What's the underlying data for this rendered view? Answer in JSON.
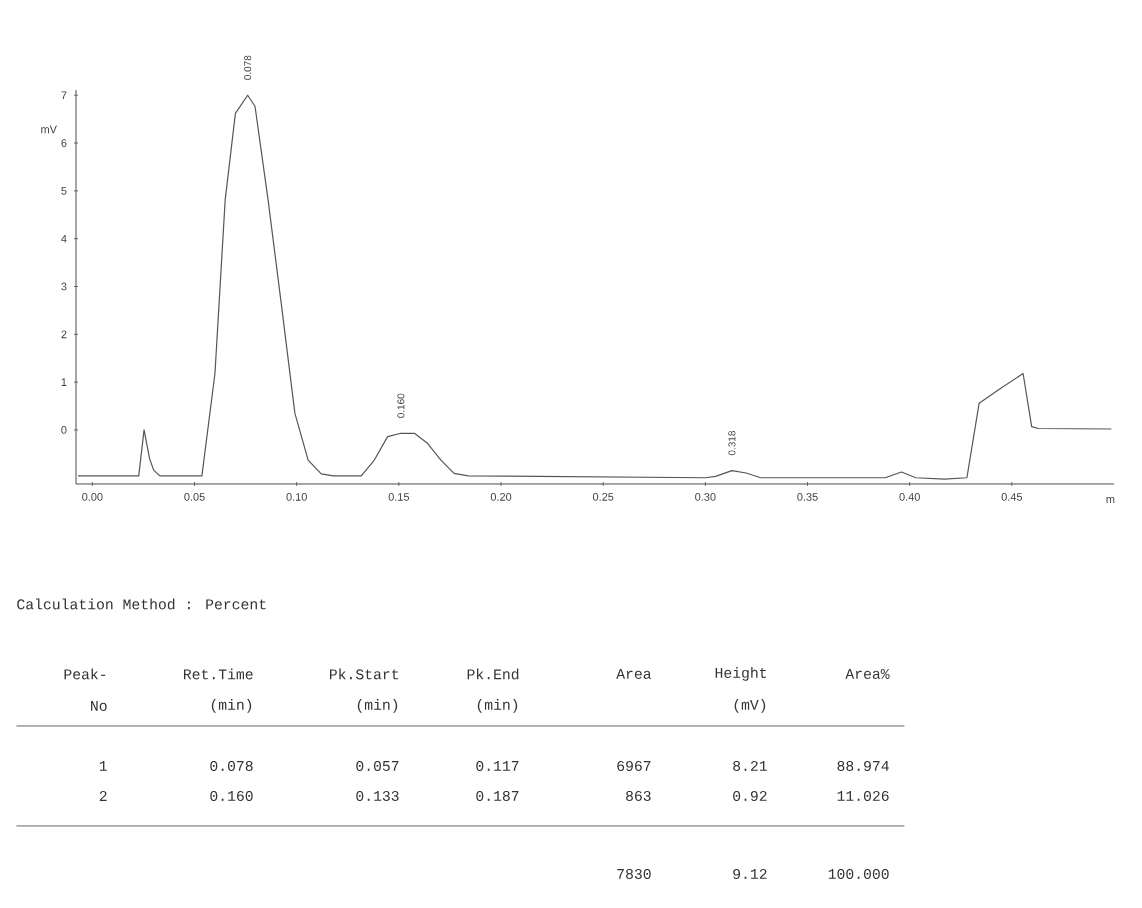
{
  "chart_data": {
    "type": "line",
    "xlabel": "m",
    "ylabel": "mV",
    "color": "#555555",
    "marker": "none",
    "xlim": [
      -0.008,
      0.5
    ],
    "ylim": [
      -1.13,
      7.11
    ],
    "xticks": [
      {
        "value": 0,
        "label": "0.00"
      },
      {
        "value": 0.05,
        "label": "0.05"
      },
      {
        "value": 0.1,
        "label": "0.10"
      },
      {
        "value": 0.15,
        "label": "0.15"
      },
      {
        "value": 0.2,
        "label": "0.20"
      },
      {
        "value": 0.25,
        "label": "0.25"
      },
      {
        "value": 0.3,
        "label": "0.30"
      },
      {
        "value": 0.35,
        "label": "0.35"
      },
      {
        "value": 0.4,
        "label": "0.40"
      },
      {
        "value": 0.45,
        "label": "0.45"
      }
    ],
    "yticks": [
      0,
      1,
      2,
      3,
      4,
      5,
      6,
      7
    ],
    "x": [
      -0.007,
      0.02,
      0.0227,
      0.0253,
      0.028,
      0.03,
      0.033,
      0.0536,
      0.06,
      0.065,
      0.07,
      0.076,
      0.0796,
      0.086,
      0.0926,
      0.0991,
      0.1056,
      0.112,
      0.118,
      0.1316,
      0.138,
      0.1445,
      0.151,
      0.1576,
      0.164,
      0.1706,
      0.177,
      0.184,
      0.3,
      0.305,
      0.313,
      0.32,
      0.327,
      0.388,
      0.396,
      0.403,
      0.417,
      0.428,
      0.434,
      0.4435,
      0.4555,
      0.4597,
      0.463,
      0.4987
    ],
    "values": [
      -0.96,
      -0.96,
      -0.96,
      0.0,
      -0.6,
      -0.84,
      -0.96,
      -0.96,
      1.18,
      4.81,
      6.62,
      7.0,
      6.77,
      4.81,
      2.59,
      0.35,
      -0.63,
      -0.92,
      -0.96,
      -0.96,
      -0.63,
      -0.14,
      -0.07,
      -0.07,
      -0.28,
      -0.63,
      -0.91,
      -0.96,
      -1.0,
      -0.97,
      -0.85,
      -0.9,
      -1.0,
      -1.0,
      -0.88,
      -1.0,
      -1.03,
      -1.0,
      0.56,
      0.84,
      1.18,
      0.07,
      0.03,
      0.02
    ],
    "annotations": [
      {
        "text": "0.078",
        "x": 0.076,
        "y": 7.0
      },
      {
        "text": "0.160",
        "x": 0.151,
        "y": -0.07
      },
      {
        "text": "0.318",
        "x": 0.313,
        "y": -0.85
      },
      "Calculation Method : Percent",
      "Peak-",
      "Ret.Time",
      "Pk.Start",
      "Pk.End",
      "Area",
      "Height",
      "Area%",
      "No",
      "(min)",
      "(min)",
      "(min)",
      "(mV)",
      "1",
      "0.078",
      "0.057",
      "0.117",
      "6967",
      "8.21",
      "88.974",
      "2",
      "0.160",
      "0.133",
      "0.187",
      "863",
      "0.92",
      "11.026",
      "7830",
      "9.12",
      "100.000"
    ]
  }
}
